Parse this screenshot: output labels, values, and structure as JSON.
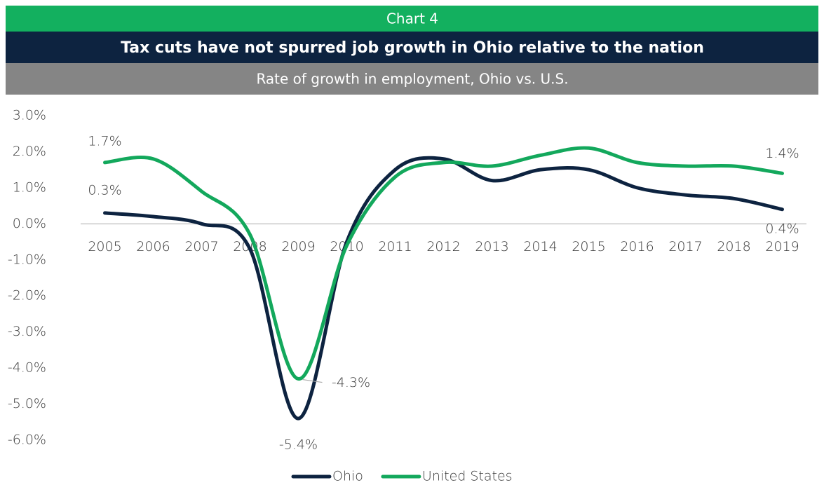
{
  "chart_data": {
    "type": "line",
    "label": "Chart 4",
    "title": "Tax cuts have not spurred job growth in Ohio relative to the nation",
    "subtitle": "Rate of growth in employment, Ohio vs. U.S.",
    "categories": [
      "2005",
      "2006",
      "2007",
      "2008",
      "2009",
      "2010",
      "2011",
      "2012",
      "2013",
      "2014",
      "2015",
      "2016",
      "2017",
      "2018",
      "2019"
    ],
    "series": [
      {
        "name": "Ohio",
        "color": "#0d2340",
        "values": [
          0.3,
          0.2,
          0.0,
          -0.7,
          -5.4,
          -0.5,
          1.5,
          1.8,
          1.2,
          1.5,
          1.5,
          1.0,
          0.8,
          0.7,
          0.4
        ],
        "value_labels": [
          "0.3%",
          null,
          null,
          null,
          "-5.4%",
          null,
          null,
          null,
          null,
          null,
          null,
          null,
          null,
          null,
          "0.4%"
        ]
      },
      {
        "name": "United States",
        "color": "#13a85c",
        "values": [
          1.7,
          1.8,
          0.9,
          -0.3,
          -4.3,
          -0.6,
          1.3,
          1.7,
          1.6,
          1.9,
          2.1,
          1.7,
          1.6,
          1.6,
          1.4
        ],
        "value_labels": [
          "1.7%",
          null,
          null,
          null,
          "-4.3%",
          null,
          null,
          null,
          null,
          null,
          null,
          null,
          null,
          null,
          "1.4%"
        ]
      }
    ],
    "ylim": [
      -6,
      3
    ],
    "yticks": [
      {
        "value": 3,
        "label": "3.0%"
      },
      {
        "value": 2,
        "label": "2.0%"
      },
      {
        "value": 1,
        "label": "1.0%"
      },
      {
        "value": 0,
        "label": "0.0%"
      },
      {
        "value": -1,
        "label": "-1.0%"
      },
      {
        "value": -2,
        "label": "-2.0%"
      },
      {
        "value": -3,
        "label": "-3.0%"
      },
      {
        "value": -4,
        "label": "-4.0%"
      },
      {
        "value": -5,
        "label": "-5.0%"
      },
      {
        "value": -6,
        "label": "-6.0%"
      }
    ],
    "legend": "bottom"
  }
}
